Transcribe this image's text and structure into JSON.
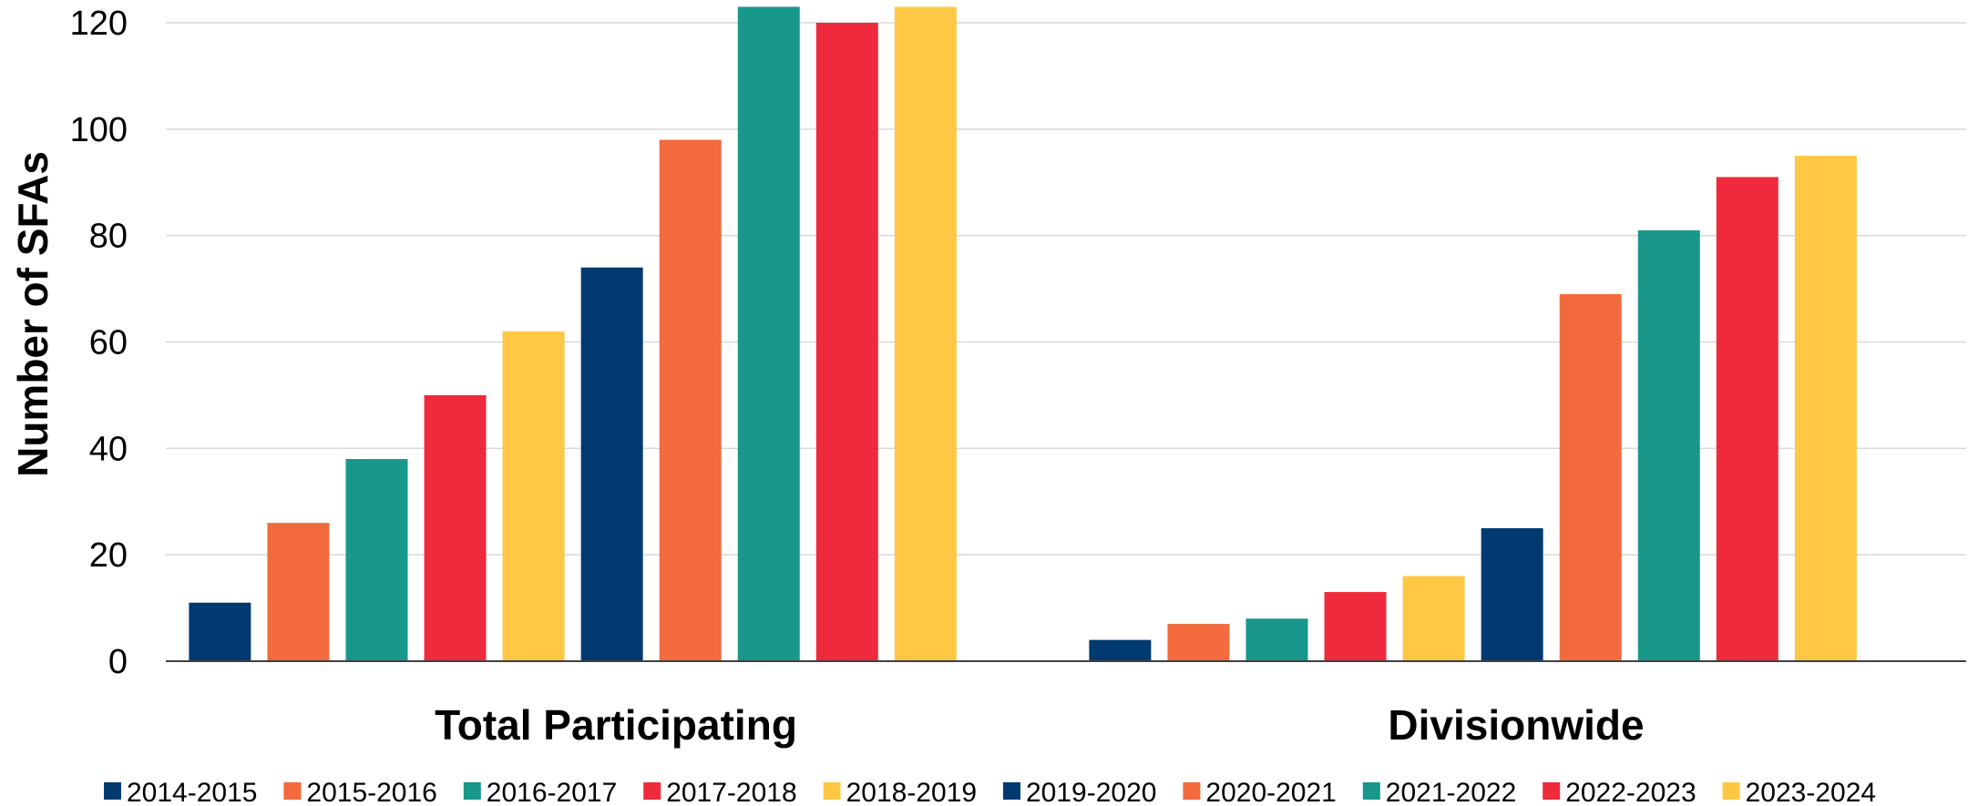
{
  "chart_data": {
    "type": "bar",
    "categories": [
      "Total Participating",
      "Divisionwide"
    ],
    "ylabel": "Number of SFAs",
    "xlabel": "",
    "ylim": [
      0,
      120
    ],
    "yticks": [
      0,
      20,
      40,
      60,
      80,
      100,
      120
    ],
    "grid": true,
    "legend_position": "bottom",
    "series": [
      {
        "name": "2014-2015",
        "values": [
          11,
          4
        ],
        "color": "#003a70"
      },
      {
        "name": "2015-2016",
        "values": [
          26,
          7
        ],
        "color": "#f26a3d"
      },
      {
        "name": "2016-2017",
        "values": [
          38,
          8
        ],
        "color": "#18978a"
      },
      {
        "name": "2017-2018",
        "values": [
          50,
          13
        ],
        "color": "#ef2a3c"
      },
      {
        "name": "2018-2019",
        "values": [
          62,
          16
        ],
        "color": "#fec844"
      },
      {
        "name": "2019-2020",
        "values": [
          74,
          25
        ],
        "color": "#003a70"
      },
      {
        "name": "2020-2021",
        "values": [
          98,
          69
        ],
        "color": "#f26a3d"
      },
      {
        "name": "2021-2022",
        "values": [
          123,
          81
        ],
        "color": "#18978a"
      },
      {
        "name": "2022-2023",
        "values": [
          120,
          91
        ],
        "color": "#ef2a3c"
      },
      {
        "name": "2023-2024",
        "values": [
          123,
          95
        ],
        "color": "#fec844"
      }
    ]
  }
}
